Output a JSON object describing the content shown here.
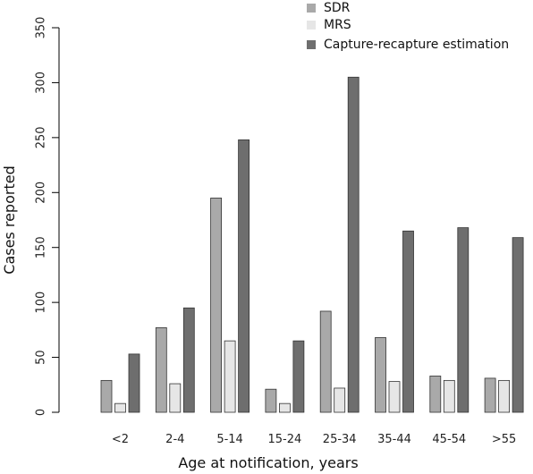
{
  "chart_data": {
    "type": "bar",
    "title": "",
    "xlabel": "Age at notification, years",
    "ylabel": "Cases reported",
    "ylim": [
      0,
      350
    ],
    "yticks": [
      0,
      50,
      100,
      150,
      200,
      250,
      300,
      350
    ],
    "categories": [
      "<2",
      "2-4",
      "5-14",
      "15-24",
      "25-34",
      "35-44",
      "45-54",
      ">55"
    ],
    "series": [
      {
        "name": "SDR",
        "color": "#a9a9a9",
        "values": [
          29,
          77,
          195,
          21,
          92,
          68,
          33,
          31
        ]
      },
      {
        "name": "MRS",
        "color": "#e6e6e6",
        "values": [
          8,
          26,
          65,
          8,
          22,
          28,
          29,
          29
        ]
      },
      {
        "name": "Capture-recapture estimation",
        "color": "#6e6e6e",
        "values": [
          53,
          95,
          248,
          65,
          305,
          165,
          168,
          159
        ]
      }
    ],
    "legend_position": "top-right",
    "grid": false
  }
}
